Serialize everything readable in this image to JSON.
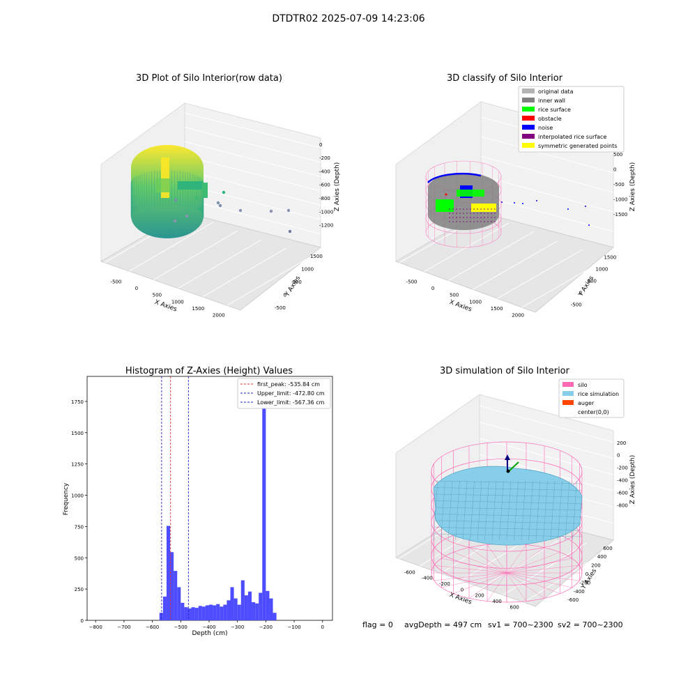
{
  "figure": {
    "suptitle": "DTDTR02 2025-07-09 14:23:06",
    "status_line": {
      "flag": "flag = 0",
      "avg_depth": "avgDepth = 497 cm",
      "sv1": "sv1 = 700~2300",
      "sv2": "sv2 = 700~2300"
    }
  },
  "chart_data": [
    {
      "type": "scatter3d",
      "title": "3D Plot of Silo Interior(row data)",
      "xlabel": "X Axies",
      "ylabel": "Y Axies",
      "zlabel": "Z Axies (Depth)",
      "x_ticks": [
        "-500",
        "0",
        "500",
        "1000",
        "1500",
        "2000"
      ],
      "y_ticks": [
        "-500",
        "0",
        "500",
        "1000",
        "1500"
      ],
      "z_ticks": [
        "0",
        "-200",
        "-400",
        "-600",
        "-800",
        "-1000",
        "-1200"
      ],
      "colormap": [
        "#440154",
        "#21918c",
        "#5ec962",
        "#fde725"
      ]
    },
    {
      "type": "scatter3d",
      "title": "3D classify of Silo Interior",
      "xlabel": "X Axies",
      "ylabel": "Y Axies",
      "zlabel": "Z Axies (Depth)",
      "x_ticks": [
        "-500",
        "0",
        "500",
        "1000",
        "1500",
        "2000"
      ],
      "y_ticks": [
        "-500",
        "0",
        "500",
        "1000",
        "1500"
      ],
      "z_ticks": [
        "500",
        "0",
        "-500",
        "-1000",
        "-1500"
      ],
      "legend": [
        {
          "label": "original data",
          "color": "#b3b3b3"
        },
        {
          "label": "inner wall",
          "color": "#808080"
        },
        {
          "label": "rice surface",
          "color": "#00ff00"
        },
        {
          "label": "obstacle",
          "color": "#ff0000"
        },
        {
          "label": "noise",
          "color": "#0000ff"
        },
        {
          "label": "interpolated rice surface",
          "color": "#800080"
        },
        {
          "label": "symmetric generated points",
          "color": "#ffff00"
        }
      ],
      "legend_loc": "upper right"
    },
    {
      "type": "bar",
      "title": "Histogram of Z-Axies (Height) Values",
      "xlabel": "Depth (cm)",
      "ylabel": "Frequency",
      "xlim": [
        -830,
        35
      ],
      "ylim": [
        0,
        1950
      ],
      "x_ticks": [
        -800,
        -700,
        -600,
        -500,
        -400,
        -300,
        -200,
        -100,
        0
      ],
      "y_ticks": [
        0,
        250,
        500,
        750,
        1000,
        1250,
        1500,
        1750
      ],
      "bin_start": -575,
      "bin_width": 12.5,
      "values": [
        60,
        190,
        755,
        545,
        395,
        265,
        140,
        105,
        95,
        105,
        100,
        115,
        110,
        120,
        125,
        120,
        130,
        110,
        125,
        160,
        265,
        175,
        125,
        320,
        200,
        230,
        145,
        135,
        220,
        1865,
        235,
        175,
        60
      ],
      "bar_color": "#4d4dff",
      "lines": [
        {
          "label": "first_peak: -535.84 cm",
          "x": -535.84,
          "color": "#e03030"
        },
        {
          "label": "Upper_limit: -472.80 cm",
          "x": -472.8,
          "color": "#2020c0"
        },
        {
          "label": "Lower_limit: -567.36 cm",
          "x": -567.36,
          "color": "#2020c0"
        }
      ],
      "legend_loc": "upper right"
    },
    {
      "type": "surface3d",
      "title": "3D simulation of Silo Interior",
      "xlabel": "X Axies",
      "ylabel": "Y Axies",
      "zlabel": "Z Axies (Depth)",
      "x_ticks": [
        "-600",
        "-400",
        "-200",
        "0",
        "200",
        "400",
        "600"
      ],
      "y_ticks": [
        "-600",
        "-400",
        "-200",
        "0",
        "200",
        "400",
        "600"
      ],
      "z_ticks": [
        "200",
        "0",
        "-200",
        "-400",
        "-600",
        "-800"
      ],
      "legend": [
        {
          "label": "silo",
          "color": "#ff69b4"
        },
        {
          "label": "rice simulation",
          "color": "#87ceeb"
        },
        {
          "label": "auger",
          "color": "#ff4500"
        },
        {
          "label": "center(0,0)",
          "color": ""
        }
      ],
      "legend_loc": "upper right"
    }
  ]
}
